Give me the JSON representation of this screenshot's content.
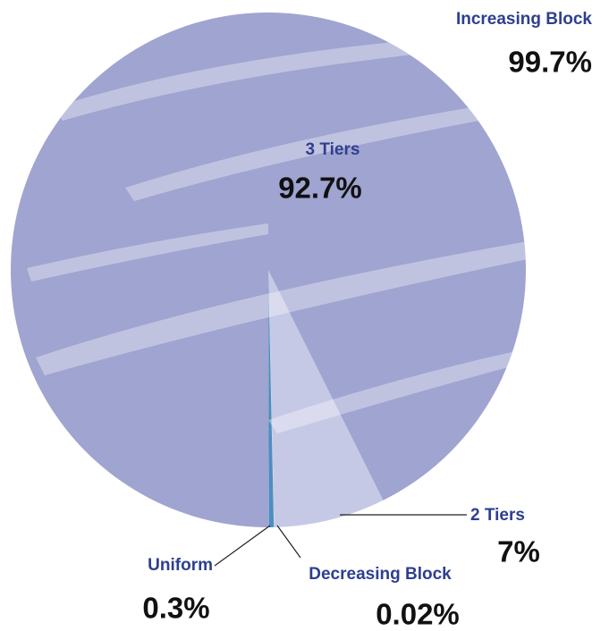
{
  "chart_data": {
    "type": "pie",
    "categories": [
      "2 Tiers",
      "Decreasing Block",
      "Uniform",
      "3 Tiers"
    ],
    "values": [
      7,
      0.02,
      0.3,
      92.7
    ],
    "value_labels": [
      "7%",
      "0.02%",
      "0.3%",
      "92.7%"
    ],
    "colors": [
      "#c6c9e6",
      "#f3d98a",
      "#4a8fc2",
      "#9fa4d0"
    ],
    "group": {
      "label": "Increasing Block",
      "value": 99.7,
      "value_label": "99.7%"
    }
  }
}
